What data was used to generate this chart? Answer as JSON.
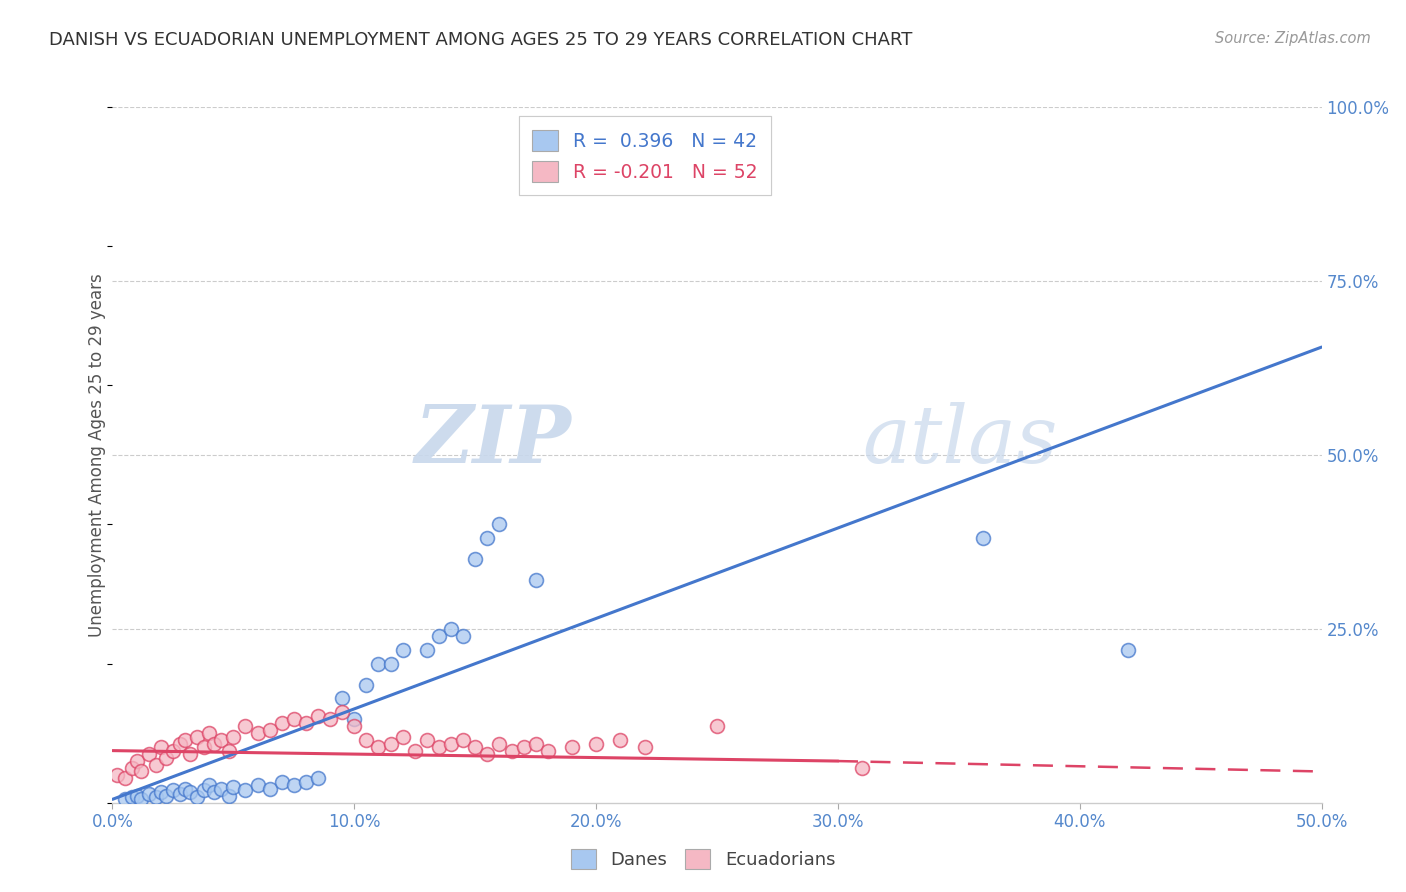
{
  "title": "DANISH VS ECUADORIAN UNEMPLOYMENT AMONG AGES 25 TO 29 YEARS CORRELATION CHART",
  "source": "Source: ZipAtlas.com",
  "ylabel": "Unemployment Among Ages 25 to 29 years",
  "xlim": [
    0,
    0.5
  ],
  "ylim": [
    0,
    1.0
  ],
  "xtick_labels": [
    "0.0%",
    "10.0%",
    "20.0%",
    "30.0%",
    "40.0%",
    "50.0%"
  ],
  "xtick_vals": [
    0.0,
    0.1,
    0.2,
    0.3,
    0.4,
    0.5
  ],
  "ytick_labels": [
    "100.0%",
    "75.0%",
    "50.0%",
    "25.0%"
  ],
  "ytick_vals": [
    1.0,
    0.75,
    0.5,
    0.25
  ],
  "danes_color": "#A8C8F0",
  "ecuadorians_color": "#F5B8C4",
  "danes_line_color": "#4477CC",
  "ecuadorians_line_color": "#DD4466",
  "danes_R": 0.396,
  "danes_N": 42,
  "ecuadorians_R": -0.201,
  "ecuadorians_N": 52,
  "watermark_zip": "ZIP",
  "watermark_atlas": "atlas",
  "danes_scatter": [
    [
      0.005,
      0.005
    ],
    [
      0.008,
      0.008
    ],
    [
      0.01,
      0.01
    ],
    [
      0.012,
      0.005
    ],
    [
      0.015,
      0.012
    ],
    [
      0.018,
      0.008
    ],
    [
      0.02,
      0.015
    ],
    [
      0.022,
      0.01
    ],
    [
      0.025,
      0.018
    ],
    [
      0.028,
      0.012
    ],
    [
      0.03,
      0.02
    ],
    [
      0.032,
      0.015
    ],
    [
      0.035,
      0.008
    ],
    [
      0.038,
      0.018
    ],
    [
      0.04,
      0.025
    ],
    [
      0.042,
      0.015
    ],
    [
      0.045,
      0.02
    ],
    [
      0.048,
      0.01
    ],
    [
      0.05,
      0.022
    ],
    [
      0.055,
      0.018
    ],
    [
      0.06,
      0.025
    ],
    [
      0.065,
      0.02
    ],
    [
      0.07,
      0.03
    ],
    [
      0.075,
      0.025
    ],
    [
      0.08,
      0.03
    ],
    [
      0.085,
      0.035
    ],
    [
      0.095,
      0.15
    ],
    [
      0.1,
      0.12
    ],
    [
      0.105,
      0.17
    ],
    [
      0.11,
      0.2
    ],
    [
      0.115,
      0.2
    ],
    [
      0.12,
      0.22
    ],
    [
      0.13,
      0.22
    ],
    [
      0.135,
      0.24
    ],
    [
      0.14,
      0.25
    ],
    [
      0.145,
      0.24
    ],
    [
      0.15,
      0.35
    ],
    [
      0.155,
      0.38
    ],
    [
      0.16,
      0.4
    ],
    [
      0.175,
      0.32
    ],
    [
      0.36,
      0.38
    ],
    [
      0.42,
      0.22
    ]
  ],
  "ecuadorians_scatter": [
    [
      0.002,
      0.04
    ],
    [
      0.005,
      0.035
    ],
    [
      0.008,
      0.05
    ],
    [
      0.01,
      0.06
    ],
    [
      0.012,
      0.045
    ],
    [
      0.015,
      0.07
    ],
    [
      0.018,
      0.055
    ],
    [
      0.02,
      0.08
    ],
    [
      0.022,
      0.065
    ],
    [
      0.025,
      0.075
    ],
    [
      0.028,
      0.085
    ],
    [
      0.03,
      0.09
    ],
    [
      0.032,
      0.07
    ],
    [
      0.035,
      0.095
    ],
    [
      0.038,
      0.08
    ],
    [
      0.04,
      0.1
    ],
    [
      0.042,
      0.085
    ],
    [
      0.045,
      0.09
    ],
    [
      0.048,
      0.075
    ],
    [
      0.05,
      0.095
    ],
    [
      0.055,
      0.11
    ],
    [
      0.06,
      0.1
    ],
    [
      0.065,
      0.105
    ],
    [
      0.07,
      0.115
    ],
    [
      0.075,
      0.12
    ],
    [
      0.08,
      0.115
    ],
    [
      0.085,
      0.125
    ],
    [
      0.09,
      0.12
    ],
    [
      0.095,
      0.13
    ],
    [
      0.1,
      0.11
    ],
    [
      0.105,
      0.09
    ],
    [
      0.11,
      0.08
    ],
    [
      0.115,
      0.085
    ],
    [
      0.12,
      0.095
    ],
    [
      0.125,
      0.075
    ],
    [
      0.13,
      0.09
    ],
    [
      0.135,
      0.08
    ],
    [
      0.14,
      0.085
    ],
    [
      0.145,
      0.09
    ],
    [
      0.15,
      0.08
    ],
    [
      0.155,
      0.07
    ],
    [
      0.16,
      0.085
    ],
    [
      0.165,
      0.075
    ],
    [
      0.17,
      0.08
    ],
    [
      0.175,
      0.085
    ],
    [
      0.18,
      0.075
    ],
    [
      0.19,
      0.08
    ],
    [
      0.2,
      0.085
    ],
    [
      0.21,
      0.09
    ],
    [
      0.22,
      0.08
    ],
    [
      0.25,
      0.11
    ],
    [
      0.31,
      0.05
    ]
  ],
  "danes_trendline": [
    [
      0.0,
      0.005
    ],
    [
      0.5,
      0.655
    ]
  ],
  "ecuadorians_trendline_solid": [
    [
      0.0,
      0.075
    ],
    [
      0.3,
      0.06
    ]
  ],
  "ecuadorians_trendline_dashed": [
    [
      0.3,
      0.06
    ],
    [
      0.5,
      0.045
    ]
  ]
}
